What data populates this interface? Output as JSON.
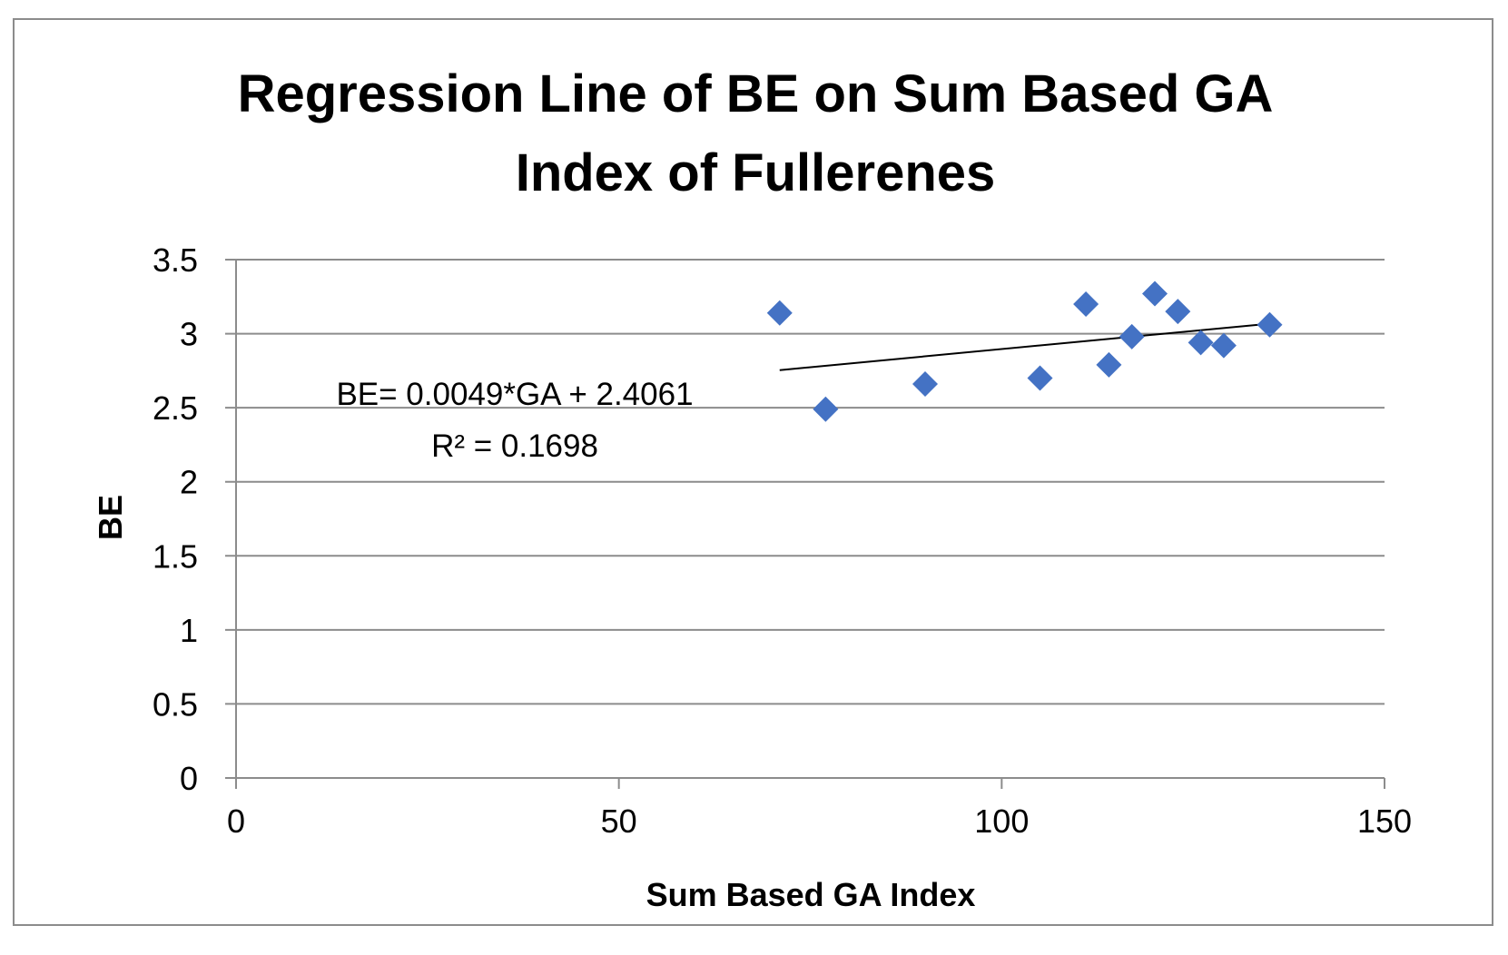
{
  "chart_data": {
    "type": "scatter",
    "title_lines": [
      "Regression Line of BE on Sum Based GA",
      "Index of Fullerenes"
    ],
    "xlabel": "Sum Based GA Index",
    "ylabel": "BE",
    "xlim": [
      0,
      150
    ],
    "ylim": [
      0,
      3.5
    ],
    "x_ticks": [
      0,
      50,
      100,
      150
    ],
    "x_tick_labels": [
      "0",
      "50",
      "100",
      "150"
    ],
    "y_ticks": [
      0,
      0.5,
      1,
      1.5,
      2,
      2.5,
      3,
      3.5
    ],
    "y_tick_labels": [
      "0",
      "0.5",
      "1",
      "1.5",
      "2",
      "2.5",
      "3",
      "3.5"
    ],
    "grid": "horizontal",
    "series": [
      {
        "name": "BE",
        "marker": "diamond",
        "color": "#4472C4",
        "points": [
          {
            "x": 71,
            "y": 3.14
          },
          {
            "x": 77,
            "y": 2.49
          },
          {
            "x": 90,
            "y": 2.66
          },
          {
            "x": 105,
            "y": 2.7
          },
          {
            "x": 111,
            "y": 3.2
          },
          {
            "x": 114,
            "y": 2.79
          },
          {
            "x": 117,
            "y": 2.98
          },
          {
            "x": 120,
            "y": 3.27
          },
          {
            "x": 123,
            "y": 3.15
          },
          {
            "x": 126,
            "y": 2.94
          },
          {
            "x": 129,
            "y": 2.92
          },
          {
            "x": 135,
            "y": 3.06
          }
        ]
      }
    ],
    "trendline": {
      "type": "linear",
      "slope": 0.0049,
      "intercept": 2.4061,
      "x_range": [
        71,
        135
      ],
      "color": "#000000",
      "equation_label": "BE= 0.0049*GA + 2.4061",
      "r2_label": "R² = 0.1698"
    }
  }
}
